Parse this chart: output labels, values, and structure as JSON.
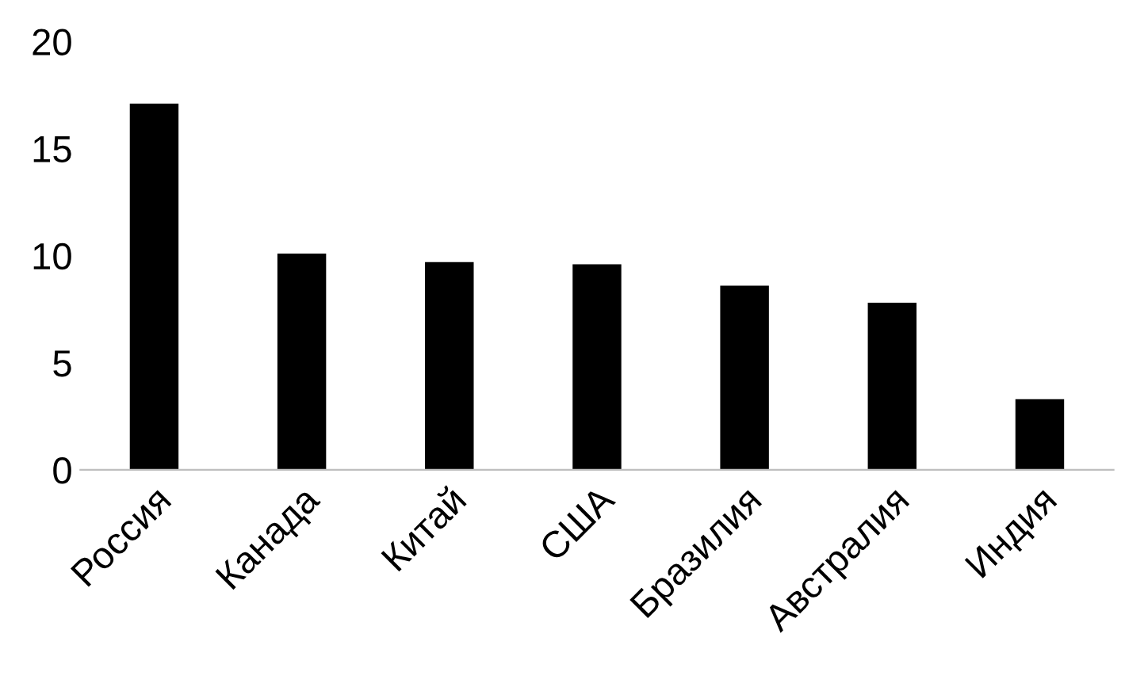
{
  "chart_data": {
    "type": "bar",
    "categories": [
      "Россия",
      "Канада",
      "Китай",
      "США",
      "Бразилия",
      "Австралия",
      "Индия"
    ],
    "values": [
      17.1,
      10.1,
      9.7,
      9.6,
      8.6,
      7.8,
      3.3
    ],
    "color": "#000000",
    "ylim": [
      0,
      20
    ],
    "yticks": [
      0,
      5,
      10,
      15,
      20
    ],
    "grid": false
  }
}
